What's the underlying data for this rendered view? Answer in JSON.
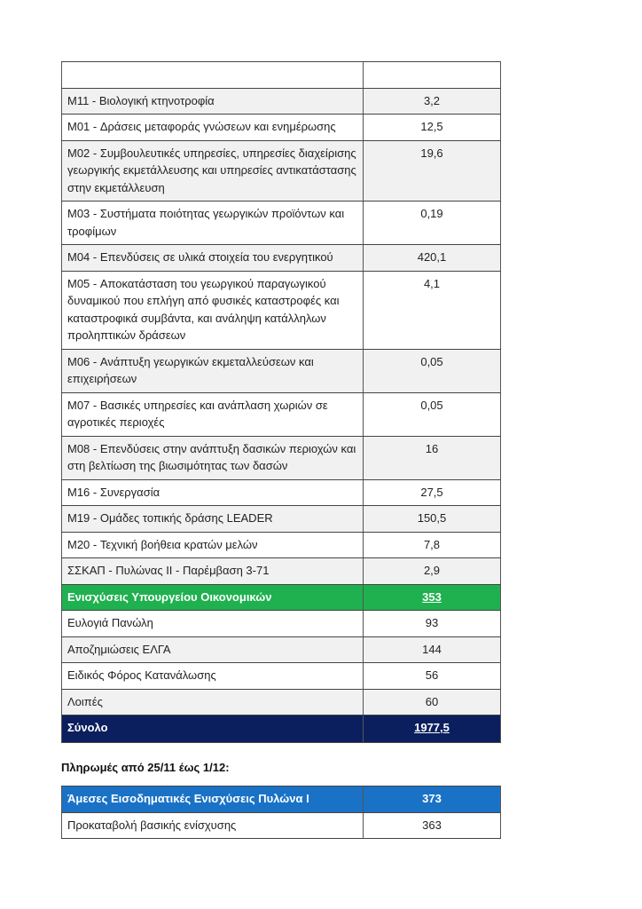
{
  "table1": {
    "header": [
      "",
      ""
    ],
    "rows": [
      {
        "label": "M11 - Βιολογική κτηνοτροφία",
        "value": "3,2"
      },
      {
        "label": "M01 - Δράσεις μεταφοράς γνώσεων και ενημέρωσης",
        "value": "12,5"
      },
      {
        "label": "M02 - Συμβουλευτικές υπηρεσίες, υπηρεσίες διαχείρισης γεωργικής εκμετάλλευσης και υπηρεσίες αντικατάστασης στην εκμετάλλευση",
        "value": "19,6"
      },
      {
        "label": "M03 - Συστήματα ποιότητας γεωργικών προϊόντων και τροφίμων",
        "value": "0,19"
      },
      {
        "label": "M04 - Επενδύσεις σε υλικά στοιχεία του ενεργητικού",
        "value": "420,1"
      },
      {
        "label": "M05 - Αποκατάσταση του γεωργικού παραγωγικού δυναμικού που επλήγη από φυσικές καταστροφές και καταστροφικά συμβάντα, και ανάληψη κατάλληλων προληπτικών δράσεων",
        "value": "4,1"
      },
      {
        "label": "M06 - Ανάπτυξη γεωργικών εκμεταλλεύσεων και επιχειρήσεων",
        "value": "0,05"
      },
      {
        "label": "M07 - Βασικές υπηρεσίες και ανάπλαση χωριών σε αγροτικές περιοχές",
        "value": "0,05"
      },
      {
        "label": "M08 - Επενδύσεις στην ανάπτυξη δασικών περιοχών και στη βελτίωση της βιωσιμότητας των δασών",
        "value": "16"
      },
      {
        "label": "M16 - Συνεργασία",
        "value": "27,5"
      },
      {
        "label": "M19 - Ομάδες τοπικής δράσης LEADER",
        "value": "150,5"
      },
      {
        "label": "M20 - Τεχνική βοήθεια κρατών μελών",
        "value": "7,8"
      },
      {
        "label": "ΣΣΚΑΠ - Πυλώνας ΙΙ - Παρέμβαση 3-71",
        "value": "2,9"
      }
    ],
    "ministry": {
      "label": "Ενισχύσεις Υπουργείου Οικονομικών",
      "value": "353"
    },
    "ministry_rows": [
      {
        "label": "Ευλογιά Πανώλη",
        "value": "93"
      },
      {
        "label": "Αποζημιώσεις ΕΛΓΑ",
        "value": "144"
      },
      {
        "label": "Ειδικός Φόρος Κατανάλωσης",
        "value": "56"
      },
      {
        "label": "Λοιπές",
        "value": "60"
      }
    ],
    "total": {
      "label": "Σύνολο",
      "value": "1977,5"
    }
  },
  "heading": "Πληρωμές από 25/11 έως 1/12:",
  "table2": {
    "header": {
      "label": "Άμεσες Εισοδηματικές Ενισχύσεις Πυλώνα Ι",
      "value": "373"
    },
    "rows": [
      {
        "label": "Προκαταβολή βασικής ενίσχυσης",
        "value": "363"
      }
    ]
  },
  "colors": {
    "green": "#1fb14f",
    "navy": "#0b1f5e",
    "blue": "#1a72c6",
    "stripe": "#f1f1f1"
  }
}
